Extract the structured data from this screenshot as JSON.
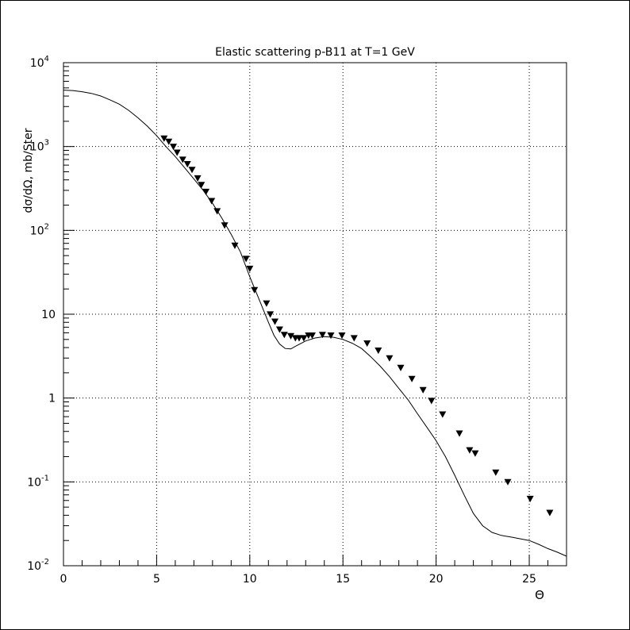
{
  "chart_data": {
    "type": "scatter",
    "title": "Elastic scattering p-B11 at T=1 GeV",
    "xlabel": "Θ",
    "ylabel": "dσ/dΩ, mb/Ster",
    "xlim": [
      0,
      27
    ],
    "ylim": [
      0.01,
      10000
    ],
    "yscale": "log",
    "grid": true,
    "x_ticks": [
      {
        "value": 0,
        "label": "0"
      },
      {
        "value": 5,
        "label": "5"
      },
      {
        "value": 10,
        "label": "10"
      },
      {
        "value": 15,
        "label": "15"
      },
      {
        "value": 20,
        "label": "20"
      },
      {
        "value": 25,
        "label": "25"
      }
    ],
    "y_ticks": [
      {
        "value": 0.01,
        "label": "10",
        "exp": "-2"
      },
      {
        "value": 0.1,
        "label": "10",
        "exp": "-1"
      },
      {
        "value": 1,
        "label": "1",
        "exp": ""
      },
      {
        "value": 10,
        "label": "10",
        "exp": ""
      },
      {
        "value": 100,
        "label": "10",
        "exp": "2"
      },
      {
        "value": 1000,
        "label": "10",
        "exp": "3"
      },
      {
        "value": 10000,
        "label": "10",
        "exp": "4"
      }
    ],
    "series": [
      {
        "kind": "points",
        "marker": "triangle-down",
        "x": [
          5.4,
          5.65,
          5.9,
          6.1,
          6.4,
          6.65,
          6.9,
          7.2,
          7.4,
          7.65,
          7.95,
          8.25,
          8.65,
          9.2,
          9.8,
          10.0,
          10.25,
          10.9,
          11.1,
          11.35,
          11.6,
          11.85,
          12.2,
          12.45,
          12.65,
          12.9,
          13.15,
          13.35,
          13.9,
          14.35,
          14.95,
          15.6,
          16.3,
          16.9,
          17.5,
          18.1,
          18.7,
          19.3,
          19.75,
          20.35,
          21.25,
          21.8,
          22.1,
          23.2,
          23.85,
          25.05,
          26.1
        ],
        "y": [
          1250,
          1150,
          1000,
          850,
          700,
          620,
          530,
          420,
          350,
          290,
          225,
          170,
          115,
          66,
          46,
          35,
          19.5,
          13.5,
          10,
          8.2,
          6.6,
          5.7,
          5.5,
          5.2,
          5.2,
          5.2,
          5.6,
          5.6,
          5.7,
          5.6,
          5.6,
          5.2,
          4.5,
          3.7,
          3.0,
          2.3,
          1.7,
          1.25,
          0.93,
          0.64,
          0.38,
          0.24,
          0.22,
          0.13,
          0.1,
          0.063,
          0.043
        ]
      },
      {
        "kind": "line",
        "x": [
          0,
          0.5,
          1,
          1.5,
          2,
          2.5,
          3,
          3.5,
          4,
          4.5,
          5,
          5.5,
          6,
          6.5,
          7,
          7.5,
          8,
          8.5,
          9,
          9.5,
          10,
          10.5,
          11,
          11.3,
          11.6,
          11.9,
          12.2,
          12.5,
          13,
          13.5,
          14,
          14.5,
          15,
          15.5,
          16,
          16.5,
          17,
          17.5,
          18,
          18.5,
          19,
          19.5,
          20,
          20.5,
          21,
          21.5,
          22,
          22.5,
          23,
          23.5,
          24,
          24.5,
          25,
          25.5,
          26,
          26.5,
          27
        ],
        "y": [
          4700,
          4650,
          4500,
          4300,
          4000,
          3600,
          3200,
          2700,
          2200,
          1750,
          1350,
          1000,
          760,
          560,
          410,
          300,
          210,
          140,
          90,
          55,
          28,
          15,
          8,
          5.6,
          4.4,
          3.9,
          3.85,
          4.2,
          4.8,
          5.2,
          5.4,
          5.3,
          5.0,
          4.5,
          3.9,
          3.1,
          2.4,
          1.8,
          1.3,
          0.95,
          0.65,
          0.45,
          0.31,
          0.2,
          0.12,
          0.07,
          0.042,
          0.03,
          0.025,
          0.023,
          0.022,
          0.021,
          0.02,
          0.018,
          0.016,
          0.0145,
          0.013
        ]
      }
    ]
  }
}
